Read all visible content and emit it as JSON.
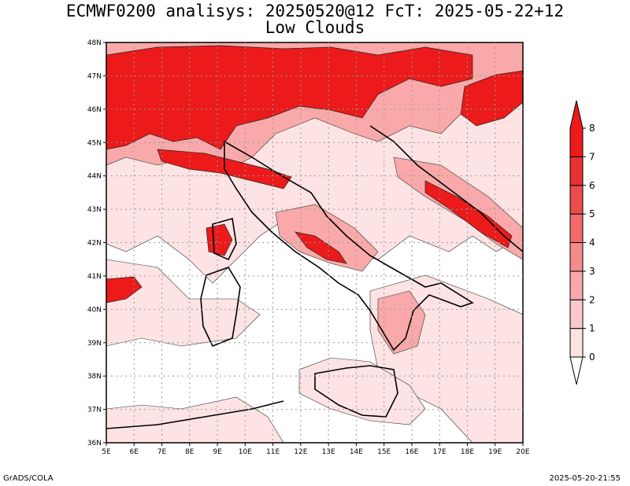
{
  "title": {
    "line1": "ECMWF0200 analisys: 20250520@12 FcT: 2025-05-22+12",
    "line2": "Low Clouds"
  },
  "footer": {
    "left": "GrADS/COLA",
    "right": "2025-05-20-21:55"
  },
  "map": {
    "lon_labels": [
      "5E",
      "6E",
      "7E",
      "8E",
      "9E",
      "10E",
      "11E",
      "12E",
      "13E",
      "14E",
      "15E",
      "16E",
      "17E",
      "18E",
      "19E",
      "20E"
    ],
    "lat_labels": [
      "48N",
      "47N",
      "46N",
      "45N",
      "44N",
      "43N",
      "42N",
      "41N",
      "40N",
      "39N",
      "38N",
      "37N",
      "36N"
    ],
    "lon_range": [
      5,
      20
    ],
    "lat_range": [
      36,
      48
    ],
    "gridlines": true
  },
  "colorbar": {
    "levels": [
      "0",
      "1",
      "2",
      "3",
      "4",
      "5",
      "6",
      "7",
      "8"
    ],
    "colors": [
      "#fde3e3",
      "#fcc8c8",
      "#f9a9a9",
      "#f58c8c",
      "#f06b6b",
      "#eb4c4c",
      "#e63232",
      "#ec1a1a"
    ]
  }
}
